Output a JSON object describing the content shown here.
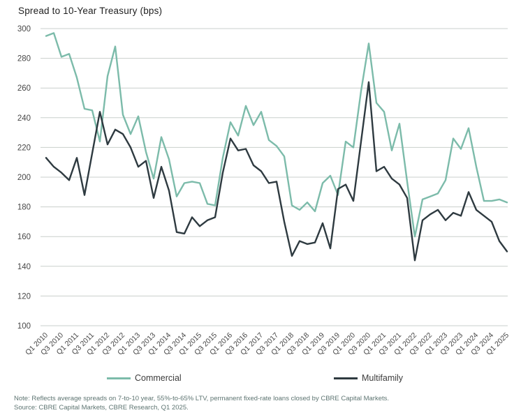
{
  "title": "Spread to 10-Year Treasury (bps)",
  "note": "Note: Reflects average spreads on 7-to-10 year, 55%-to-65% LTV, permanent fixed-rate loans closed by CBRE Capital Markets.",
  "source": "Source: CBRE Capital Markets, CBRE Research, Q1 2025.",
  "legend": {
    "commercial_label": "Commercial",
    "multifamily_label": "Multifamily"
  },
  "colors": {
    "commercial": "#7cbbaa",
    "multifamily": "#2e3a40",
    "gridline": "#c9cfcc",
    "tick_text": "#474747",
    "note_text": "#5d7471"
  },
  "chart_data": {
    "type": "line",
    "title": "Spread to 10-Year Treasury (bps)",
    "xlabel": "",
    "ylabel": "Spread to 10-Year Treasury (bps)",
    "ylim": [
      100,
      300
    ],
    "yticks": [
      300,
      280,
      260,
      240,
      220,
      200,
      180,
      160,
      140,
      120,
      100
    ],
    "grid": "horizontal",
    "legend_position": "bottom",
    "x_start": "Q1 2010",
    "x_end": "Q1 2025",
    "x_frequency": "quarterly",
    "xtick_labels": [
      "Q1 2010",
      "Q3 2010",
      "Q1 2011",
      "Q3 2011",
      "Q1 2012",
      "Q3 2012",
      "Q1 2013",
      "Q3 2013",
      "Q1 2014",
      "Q3 2014",
      "Q1 2015",
      "Q3 2015",
      "Q1 2016",
      "Q3 2016",
      "Q1 2017",
      "Q3 2017",
      "Q1 2018",
      "Q3 2018",
      "Q1 2019",
      "Q3 2019",
      "Q1 2020",
      "Q3 2020",
      "Q1 2021",
      "Q3 2021",
      "Q1 2022",
      "Q3 2022",
      "Q1 2023",
      "Q3 2023",
      "Q1 2024",
      "Q3 2024",
      "Q1 2025"
    ],
    "series": [
      {
        "name": "Commercial",
        "color": "#7cbbaa",
        "values": [
          295,
          297,
          281,
          283,
          267,
          246,
          245,
          224,
          268,
          288,
          242,
          229,
          241,
          217,
          199,
          227,
          212,
          187,
          196,
          197,
          196,
          182,
          181,
          213,
          237,
          228,
          248,
          235,
          244,
          225,
          221,
          214,
          181,
          178,
          183,
          177,
          196,
          201,
          188,
          224,
          220,
          258,
          290,
          250,
          244,
          218,
          236,
          197,
          160,
          185,
          187,
          189,
          198,
          226,
          219,
          233,
          207,
          184,
          184,
          185,
          183
        ]
      },
      {
        "name": "Multifamily",
        "color": "#2e3a40",
        "values": [
          213,
          207,
          203,
          198,
          213,
          188,
          216,
          244,
          222,
          232,
          229,
          220,
          207,
          211,
          186,
          207,
          191,
          163,
          162,
          173,
          167,
          171,
          173,
          203,
          226,
          218,
          219,
          208,
          204,
          196,
          197,
          170,
          147,
          157,
          155,
          156,
          169,
          152,
          192,
          195,
          184,
          224,
          264,
          204,
          207,
          199,
          195,
          186,
          144,
          171,
          175,
          178,
          171,
          176,
          174,
          190,
          178,
          174,
          170,
          157,
          150
        ]
      }
    ]
  }
}
